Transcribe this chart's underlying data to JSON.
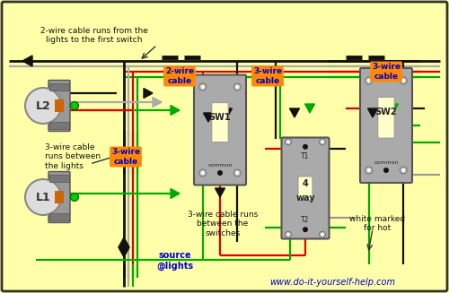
{
  "bg_color": "#ffffaa",
  "wire_black": "#111111",
  "wire_white": "#aaaaaa",
  "wire_red": "#dd0000",
  "wire_green": "#00aa00",
  "wire_bare": "#999999",
  "orange": "#ff8800",
  "blue": "#0000cc",
  "gray": "#888888",
  "dark_gray": "#555555",
  "website": "www.do-it-yourself-help.com",
  "text_topleft": "2-wire cable runs from the\nlights to the first switch",
  "text_midleft": "3-wire cable\nruns between\nthe lights",
  "text_bottom_center": "3-wire cable runs\nbetween the\nswitches",
  "text_bottom_right": "white marked\nfor hot",
  "text_source": "source\n@lights"
}
